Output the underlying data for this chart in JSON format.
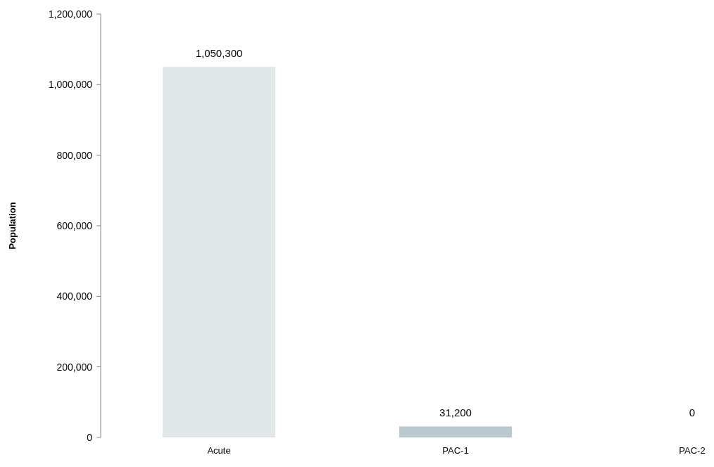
{
  "chart_data": {
    "type": "bar",
    "ylabel": "Population",
    "categories": [
      "Acute",
      "PAC-1",
      "PAC-2"
    ],
    "values": [
      1050300,
      31200,
      0
    ],
    "colors": [
      "#e2e8ea",
      "#b9c9cd",
      "#b9c9cd"
    ],
    "ylim": [
      0,
      1200000
    ],
    "yticks": [
      {
        "value": 0,
        "label": "0"
      },
      {
        "value": 200000,
        "label": "200,000"
      },
      {
        "value": 400000,
        "label": "400,000"
      },
      {
        "value": 600000,
        "label": "600,000"
      },
      {
        "value": 800000,
        "label": "800,000"
      },
      {
        "value": 1000000,
        "label": "1,000,000"
      },
      {
        "value": 1200000,
        "label": "1,200,000"
      }
    ],
    "value_labels": [
      "1,050,300",
      "31,200",
      "0"
    ]
  }
}
